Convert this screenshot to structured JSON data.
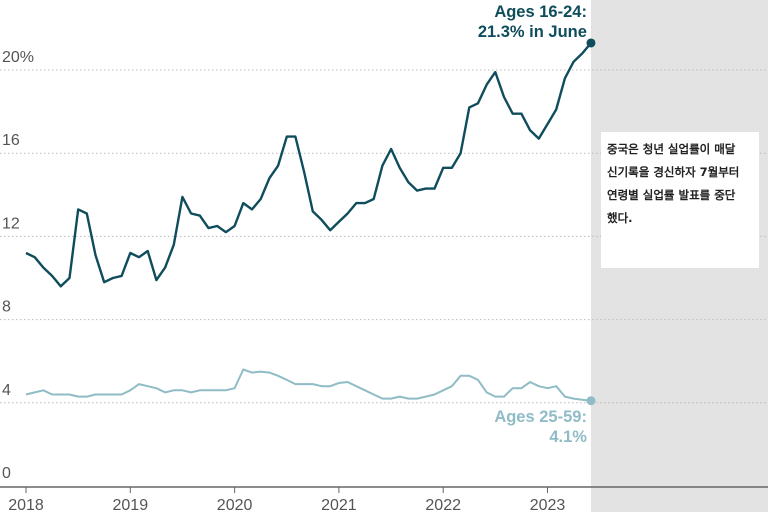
{
  "chart_data": {
    "type": "line",
    "title": "",
    "xlabel": "",
    "ylabel": "",
    "ylim": [
      0,
      22
    ],
    "xlim": [
      "2018-01",
      "2023-12"
    ],
    "y_ticks": [
      "0",
      "4",
      "8",
      "12",
      "16",
      "20%"
    ],
    "y_tick_values": [
      0,
      4,
      8,
      12,
      16,
      20
    ],
    "x_ticks": [
      "2018",
      "2019",
      "2020",
      "2021",
      "2022",
      "2023"
    ],
    "grid": "horizontal dotted",
    "shaded_region": {
      "from": "2023-06",
      "to": "2023-12",
      "color": "#e3e3e3"
    },
    "x_start": "2018-01",
    "series": [
      {
        "name": "Ages 16-24",
        "color": "#0f4d5c",
        "label": [
          "Ages 16-24:",
          "21.3% in June"
        ],
        "values": [
          11.2,
          11.0,
          10.5,
          10.1,
          9.6,
          10.0,
          13.3,
          13.1,
          11.1,
          9.8,
          10.0,
          10.1,
          11.2,
          11.0,
          11.3,
          9.9,
          10.5,
          11.6,
          13.9,
          13.1,
          13.0,
          12.4,
          12.5,
          12.2,
          12.5,
          13.6,
          13.3,
          13.8,
          14.8,
          15.4,
          16.8,
          16.8,
          15.1,
          13.2,
          12.8,
          12.3,
          12.7,
          13.1,
          13.6,
          13.6,
          13.8,
          15.4,
          16.2,
          15.3,
          14.6,
          14.2,
          14.3,
          14.3,
          15.3,
          15.3,
          16.0,
          18.2,
          18.4,
          19.3,
          19.9,
          18.7,
          17.9,
          17.9,
          17.1,
          16.7,
          17.4,
          18.1,
          19.6,
          20.4,
          20.8,
          21.3
        ]
      },
      {
        "name": "Ages 25-59",
        "color": "#8fbcc6",
        "label": [
          "Ages 25-59:",
          "4.1%"
        ],
        "values": [
          4.4,
          4.5,
          4.6,
          4.4,
          4.4,
          4.4,
          4.3,
          4.3,
          4.4,
          4.4,
          4.4,
          4.4,
          4.6,
          4.9,
          4.8,
          4.7,
          4.5,
          4.6,
          4.6,
          4.5,
          4.6,
          4.6,
          4.6,
          4.6,
          4.7,
          5.6,
          5.45,
          5.5,
          5.45,
          5.3,
          5.1,
          4.9,
          4.9,
          4.9,
          4.8,
          4.8,
          4.95,
          5.0,
          4.8,
          4.6,
          4.4,
          4.2,
          4.2,
          4.3,
          4.2,
          4.2,
          4.3,
          4.4,
          4.6,
          4.8,
          5.3,
          5.3,
          5.1,
          4.5,
          4.3,
          4.3,
          4.7,
          4.7,
          5.0,
          4.8,
          4.7,
          4.8,
          4.3,
          4.2,
          4.15,
          4.1
        ]
      }
    ],
    "annotation": [
      "중국은 청년 실업률이 매달",
      "신기록을 경신하자 7월부터",
      "연령별 실업률 발표를 중단",
      "했다."
    ]
  }
}
